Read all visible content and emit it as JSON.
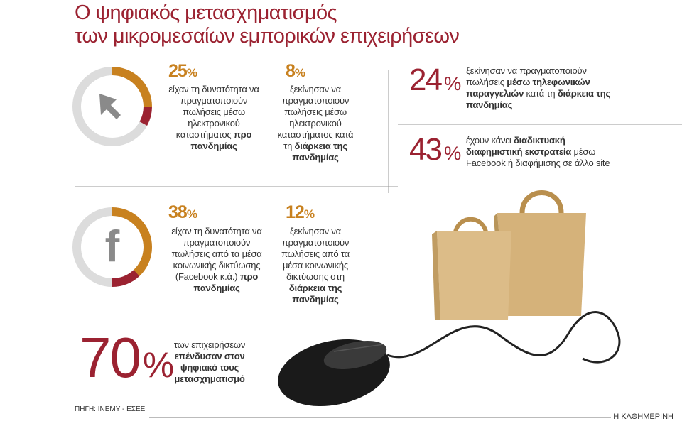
{
  "header": {
    "title_lines": [
      "Ο ψηφιακός μετασχηματισμός",
      "των μικρομεσαίων εμπορικών επιχειρήσεων"
    ]
  },
  "stats": [
    {
      "value": 25,
      "unit": "%",
      "parts": [
        {
          "t": "είχαν τη δυνατότητα να πραγματοποιούν πωλήσεις μέσω ηλεκτρονικού καταστήματος ",
          "b": false
        },
        {
          "t": "προ πανδημίας",
          "b": true
        }
      ]
    },
    {
      "value": 8,
      "unit": "%",
      "parts": [
        {
          "t": "ξεκίνησαν να πραγματοποιούν πωλήσεις μέσω ηλεκτρονικού καταστήματος κατά τη ",
          "b": false
        },
        {
          "t": "διάρκεια της πανδημίας",
          "b": true
        }
      ]
    },
    {
      "value": 24,
      "unit": "%",
      "parts": [
        {
          "t": "ξεκίνησαν να πραγματοποιούν πωλήσεις ",
          "b": false
        },
        {
          "t": "μέσω τηλεφωνικών παραγγελιών",
          "b": true
        },
        {
          "t": " κατά τη ",
          "b": false
        },
        {
          "t": "διάρκεια της πανδημίας",
          "b": true
        }
      ]
    },
    {
      "value": 43,
      "unit": "%",
      "parts": [
        {
          "t": "έχουν κάνει ",
          "b": false
        },
        {
          "t": "διαδικτυακή διαφημιστική εκστρατεία",
          "b": true
        },
        {
          "t": " μέσω Facebook ή διαφήμισης σε άλλο site",
          "b": false
        }
      ]
    },
    {
      "value": 38,
      "unit": "%",
      "parts": [
        {
          "t": "είχαν τη δυνατότητα να πραγματοποιούν πωλήσεις από τα μέσα κοινωνικής δικτύωσης (Facebook κ.ά.) ",
          "b": false
        },
        {
          "t": "προ πανδημίας",
          "b": true
        }
      ]
    },
    {
      "value": 12,
      "unit": "%",
      "parts": [
        {
          "t": "ξεκίνησαν να πραγματοποιούν πωλήσεις από τα μέσα κοινωνικής δικτύωσης στη ",
          "b": false
        },
        {
          "t": "διάρκεια της πανδημίας",
          "b": true
        }
      ]
    },
    {
      "value": 70,
      "unit": "%",
      "parts": [
        {
          "t": "των επιχειρήσεων ",
          "b": false
        },
        {
          "t": "επένδυσαν στον ψηφιακό τους μετασχηματισμό",
          "b": true
        }
      ]
    }
  ],
  "footer": {
    "source": "ΠΗΓΗ: ΙΝΕΜΥ - ΕΣΕΕ",
    "publisher": "Η ΚΑΘΗΜΕΡΙΝΗ"
  }
}
